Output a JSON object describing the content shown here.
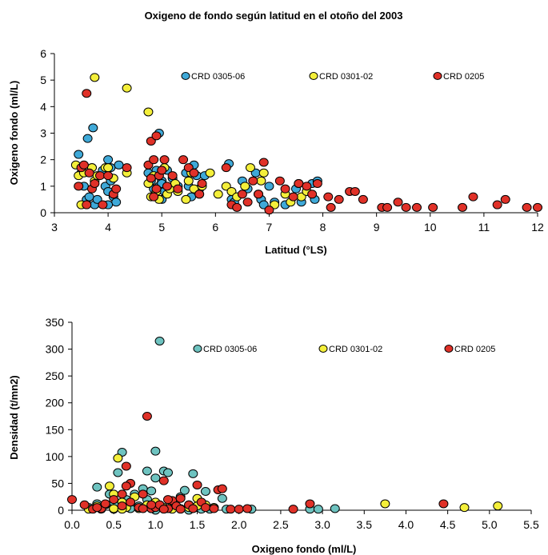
{
  "colors": {
    "crd_0305_06_chart1": "#3FA9D8",
    "crd_0305_06_chart2": "#6EC3C0",
    "crd_0301_02": "#F4EF3A",
    "crd_0205": "#E03128",
    "marker_stroke": "#000000"
  },
  "chart_data": [
    {
      "type": "scatter",
      "title": "Oxigeno de fondo según latitud en el otoño del 2003",
      "xlabel": "Latitud (°LS)",
      "ylabel": "Oxigeno fondo (ml/L)",
      "xlim": [
        3,
        12
      ],
      "ylim": [
        0,
        6
      ],
      "xticks": [
        "3",
        "4",
        "5",
        "6",
        "7",
        "8",
        "9",
        "10",
        "11",
        "12"
      ],
      "yticks": [
        "0",
        "1",
        "2",
        "3",
        "4",
        "5",
        "6"
      ],
      "grid": false,
      "legend_position": "top-right",
      "series": [
        {
          "name": "CRD 0305-06",
          "x": [
            3.45,
            3.5,
            3.55,
            3.6,
            3.65,
            3.7,
            3.75,
            3.8,
            3.9,
            3.95,
            4.0,
            4.05,
            4.1,
            4.15,
            4.2,
            3.62,
            3.72,
            4.0,
            4.75,
            4.8,
            4.85,
            4.9,
            4.95,
            5.0,
            5.05,
            5.1,
            5.2,
            5.3,
            5.45,
            5.5,
            5.55,
            5.6,
            5.65,
            5.7,
            5.8,
            4.95,
            5.0,
            6.25,
            6.3,
            6.35,
            6.5,
            6.6,
            6.75,
            6.8,
            6.85,
            6.9,
            7.0,
            7.1,
            7.3,
            7.5,
            7.6,
            7.7,
            7.8,
            7.85,
            7.9,
            4.0,
            5.0,
            4.05
          ],
          "y": [
            2.2,
            1.5,
            1.0,
            0.5,
            0.6,
            1.7,
            0.3,
            0.5,
            1.6,
            1.0,
            2.0,
            1.7,
            0.6,
            0.4,
            1.8,
            2.8,
            3.2,
            0.8,
            1.5,
            1.2,
            0.9,
            1.6,
            1.0,
            1.2,
            0.8,
            1.6,
            1.3,
            1.0,
            1.5,
            1.0,
            0.6,
            1.8,
            1.4,
            0.9,
            1.4,
            3.0,
            1.1,
            1.85,
            0.5,
            0.4,
            1.2,
            0.9,
            1.5,
            0.7,
            0.5,
            0.3,
            1.0,
            0.4,
            0.3,
            0.9,
            0.4,
            0.8,
            1.1,
            0.5,
            1.2,
            0.3,
            0.5,
            1.2
          ]
        },
        {
          "name": "CRD 0301-02",
          "x": [
            3.4,
            3.45,
            3.5,
            3.55,
            3.7,
            3.75,
            3.8,
            3.95,
            4.0,
            4.1,
            4.35,
            4.75,
            4.8,
            4.85,
            4.9,
            4.95,
            5.05,
            5.1,
            5.15,
            5.25,
            5.3,
            5.45,
            5.5,
            5.55,
            5.6,
            5.7,
            5.75,
            5.9,
            6.05,
            6.2,
            6.3,
            6.4,
            6.55,
            6.65,
            6.85,
            6.9,
            7.1,
            7.3,
            7.4,
            7.55,
            7.6,
            7.7,
            3.75,
            4.35,
            4.75
          ],
          "y": [
            1.8,
            1.4,
            0.3,
            1.5,
            1.7,
            1.2,
            1.4,
            1.7,
            1.7,
            1.3,
            1.5,
            1.1,
            0.6,
            1.4,
            0.8,
            0.5,
            1.7,
            0.7,
            0.9,
            1.1,
            0.8,
            0.5,
            1.2,
            1.5,
            0.9,
            0.7,
            1.0,
            1.5,
            0.7,
            1.0,
            0.8,
            0.6,
            1.0,
            1.7,
            1.2,
            1.5,
            0.3,
            0.7,
            0.4,
            1.1,
            0.6,
            0.8,
            5.1,
            4.7,
            3.8
          ]
        },
        {
          "name": "CRD 0205",
          "x": [
            3.45,
            3.5,
            3.55,
            3.6,
            3.65,
            3.7,
            3.75,
            3.85,
            3.9,
            4.0,
            4.1,
            4.15,
            4.35,
            3.6,
            4.75,
            4.8,
            4.85,
            4.9,
            4.95,
            5.0,
            5.1,
            5.2,
            5.3,
            5.4,
            5.5,
            5.6,
            5.7,
            5.75,
            4.8,
            4.85,
            4.9,
            5.05,
            6.2,
            6.3,
            6.4,
            6.5,
            6.6,
            6.7,
            6.8,
            6.9,
            7.0,
            7.2,
            7.3,
            7.45,
            7.55,
            7.7,
            7.8,
            7.9,
            8.1,
            8.15,
            8.3,
            8.5,
            8.6,
            8.75,
            9.1,
            9.2,
            9.4,
            9.55,
            9.75,
            10.05,
            10.6,
            10.8,
            11.25,
            11.4,
            11.8,
            12.0
          ],
          "y": [
            1.0,
            1.7,
            1.8,
            0.3,
            1.5,
            0.9,
            1.1,
            1.4,
            0.3,
            1.4,
            0.7,
            0.9,
            1.7,
            4.5,
            1.8,
            1.3,
            0.6,
            0.9,
            1.4,
            1.6,
            1.0,
            1.4,
            0.9,
            2.0,
            1.7,
            1.5,
            0.7,
            1.1,
            2.7,
            2.0,
            2.9,
            2.0,
            1.7,
            0.3,
            0.2,
            0.7,
            0.4,
            1.2,
            0.7,
            1.9,
            0.1,
            1.2,
            0.9,
            0.6,
            1.1,
            1.0,
            0.7,
            1.1,
            0.6,
            0.2,
            0.5,
            0.8,
            0.8,
            0.5,
            0.2,
            0.2,
            0.4,
            0.2,
            0.2,
            0.2,
            0.2,
            0.6,
            0.3,
            0.5,
            0.2,
            0.2
          ]
        }
      ]
    },
    {
      "type": "scatter",
      "title": "",
      "xlabel": "Oxigeno fondo (ml/L)",
      "ylabel": "Densidad (t/mn2)",
      "xlim": [
        0,
        5.5
      ],
      "ylim": [
        0,
        350
      ],
      "xticks": [
        "0.0",
        "0.5",
        "1.0",
        "1.5",
        "2.0",
        "2.5",
        "3.0",
        "3.5",
        "4.0",
        "4.5",
        "5.0",
        "5.5"
      ],
      "yticks": [
        "0",
        "50",
        "100",
        "150",
        "200",
        "250",
        "300",
        "350"
      ],
      "grid": false,
      "legend_position": "top-right",
      "series": [
        {
          "name": "CRD 0305-06",
          "x": [
            0.2,
            0.3,
            0.35,
            0.4,
            0.45,
            0.5,
            0.55,
            0.6,
            0.65,
            0.7,
            0.8,
            0.85,
            0.9,
            0.95,
            1.0,
            1.05,
            1.1,
            1.15,
            1.2,
            1.3,
            1.35,
            1.4,
            1.45,
            1.5,
            1.55,
            1.6,
            1.65,
            1.7,
            1.8,
            1.85,
            2.15,
            2.85,
            2.95,
            3.15,
            0.55,
            0.9,
            1.0,
            1.0,
            0.5,
            0.3,
            1.4,
            1.2,
            0.75
          ],
          "y": [
            5,
            43,
            2,
            10,
            30,
            15,
            70,
            108,
            20,
            3,
            8,
            40,
            73,
            36,
            110,
            315,
            73,
            70,
            5,
            25,
            37,
            10,
            68,
            5,
            2,
            35,
            2,
            5,
            22,
            2,
            2,
            2,
            2,
            3,
            10,
            20,
            60,
            0,
            2,
            12,
            0,
            5,
            30
          ]
        },
        {
          "name": "CRD 0301-02",
          "x": [
            0.2,
            0.3,
            0.35,
            0.45,
            0.5,
            0.55,
            0.6,
            0.65,
            0.75,
            0.8,
            0.9,
            0.95,
            1.0,
            1.1,
            1.2,
            1.3,
            1.4,
            1.5,
            1.6,
            1.7,
            0.5,
            0.6,
            1.2,
            1.5,
            3.75,
            4.7,
            5.1
          ],
          "y": [
            2,
            8,
            3,
            45,
            30,
            97,
            15,
            5,
            25,
            3,
            10,
            3,
            15,
            5,
            8,
            3,
            5,
            22,
            10,
            5,
            3,
            2,
            2,
            8,
            12,
            5,
            8
          ]
        },
        {
          "name": "CRD 0205",
          "x": [
            0.0,
            0.15,
            0.25,
            0.35,
            0.4,
            0.5,
            0.6,
            0.65,
            0.7,
            0.8,
            0.85,
            0.9,
            0.95,
            1.0,
            1.05,
            1.1,
            1.15,
            1.2,
            1.25,
            1.3,
            1.4,
            1.45,
            1.5,
            1.55,
            1.6,
            1.7,
            1.75,
            1.8,
            1.9,
            2.0,
            2.1,
            2.65,
            2.85,
            4.45,
            0.6,
            0.65,
            0.85,
            1.1,
            1.3,
            0.7,
            0.3,
            0.95,
            1.15
          ],
          "y": [
            20,
            10,
            2,
            3,
            12,
            20,
            30,
            82,
            50,
            5,
            30,
            175,
            3,
            5,
            10,
            55,
            3,
            18,
            8,
            22,
            10,
            3,
            47,
            15,
            5,
            3,
            38,
            40,
            2,
            2,
            3,
            2,
            12,
            12,
            8,
            45,
            3,
            2,
            2,
            15,
            5,
            10,
            20
          ]
        }
      ]
    }
  ]
}
